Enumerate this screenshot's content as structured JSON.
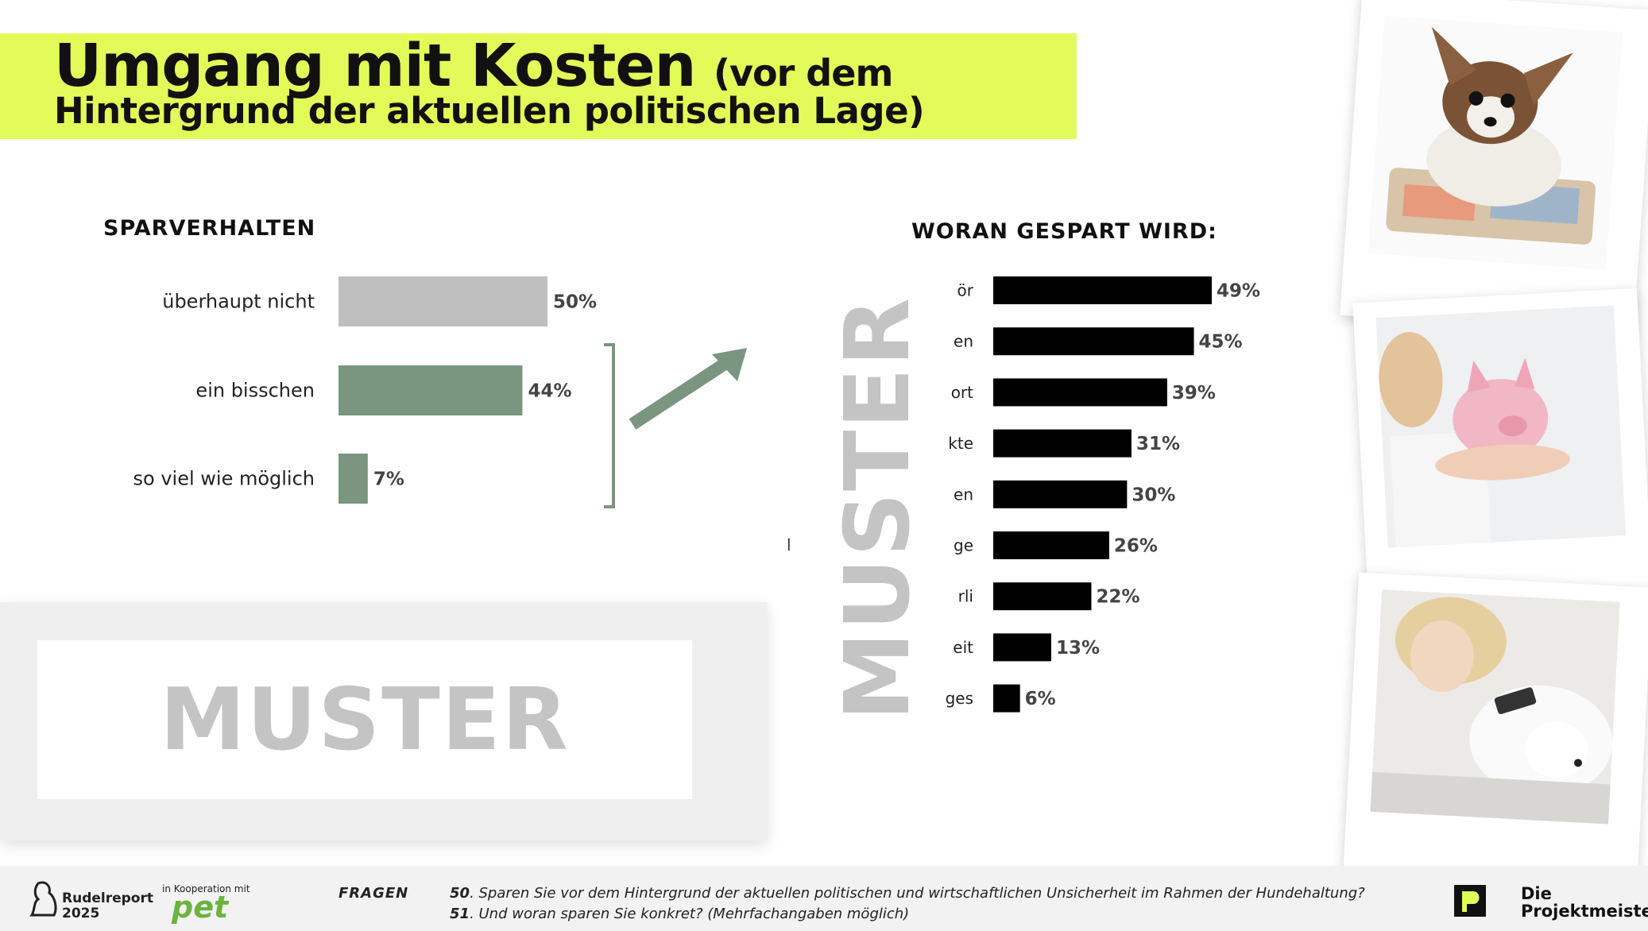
{
  "title": {
    "main": "Umgang mit Kosten",
    "suffix": "(vor dem",
    "line2": "Hintergrund der aktuellen politischen Lage)"
  },
  "chart_data": [
    {
      "type": "bar",
      "orientation": "horizontal",
      "title": "SPARVERHALTEN",
      "categories": [
        "überhaupt nicht",
        "ein bisschen",
        "so viel wie möglich"
      ],
      "values": [
        50,
        44,
        7
      ],
      "labels": [
        "50%",
        "44%",
        "7%"
      ],
      "unit": "%",
      "xlim": [
        0,
        50
      ],
      "colors": [
        "#bfbfbf",
        "#7a9580",
        "#7a9580"
      ]
    },
    {
      "type": "bar",
      "orientation": "horizontal",
      "title": "WORAN GESPART WIRD:",
      "categories": [
        "ör",
        "en",
        "ort",
        "kte",
        "en",
        "ge",
        "rli",
        "eit",
        "ges"
      ],
      "values": [
        49,
        45,
        39,
        31,
        30,
        26,
        22,
        13,
        6
      ],
      "labels": [
        "49%",
        "45%",
        "39%",
        "31%",
        "30%",
        "26%",
        "22%",
        "13%",
        "6%"
      ],
      "unit": "%",
      "xlim": [
        0,
        49
      ],
      "colors": [
        "#000000"
      ]
    }
  ],
  "watermark": {
    "text": "MUSTER",
    "vertical_text": "MUSTER"
  },
  "stray_label": "l",
  "colors": {
    "accent": "#e3fb58",
    "green": "#7a9580",
    "grey": "#bfbfbf",
    "watermark": "#c4c4c4"
  },
  "photos": [
    "dog-with-money-photo",
    "woman-with-piggy-bank-photo",
    "woman-with-dog-phone-photo"
  ],
  "footer": {
    "brand_line1": "Rudelreport",
    "brand_line2": "2025",
    "cooperation": "in Kooperation mit",
    "partner": "pet",
    "fragen_label": "FRAGEN",
    "q1_num": "50",
    "q1_text": ". Sparen Sie vor dem Hintergrund der aktuellen politischen und wirtschaftlichen Unsicherheit im Rahmen der Hundehaltung?",
    "q2_num": "51",
    "q2_text": ". Und woran sparen Sie konkret? (Mehrfachangaben möglich)",
    "company_line1": "Die",
    "company_line2": "Projektmeisterei"
  }
}
